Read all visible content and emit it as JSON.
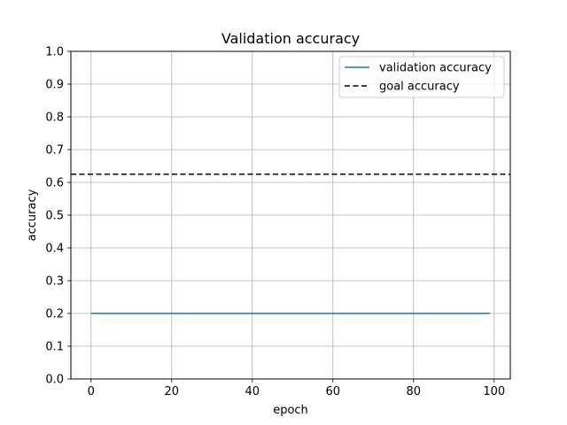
{
  "chart_data": {
    "type": "line",
    "title": "Validation accuracy",
    "xlabel": "epoch",
    "ylabel": "accuracy",
    "xlim": [
      -5,
      104
    ],
    "ylim": [
      0,
      1
    ],
    "xticks": [
      0,
      20,
      40,
      60,
      80,
      100
    ],
    "yticks": [
      0.0,
      0.1,
      0.2,
      0.3,
      0.4,
      0.5,
      0.6,
      0.7,
      0.8,
      0.9,
      1.0
    ],
    "xtick_labels": [
      "0",
      "20",
      "40",
      "60",
      "80",
      "100"
    ],
    "ytick_labels": [
      "0.0",
      "0.1",
      "0.2",
      "0.3",
      "0.4",
      "0.5",
      "0.6",
      "0.7",
      "0.8",
      "0.9",
      "1.0"
    ],
    "grid": true,
    "legend_position": "top-right",
    "series": [
      {
        "name": "validation accuracy",
        "style": "solid",
        "color": "#1f77b4",
        "x": [
          0,
          99
        ],
        "y": [
          0.2,
          0.2
        ]
      },
      {
        "name": "goal accuracy",
        "style": "dashed",
        "color": "#000000",
        "span": "full-width",
        "y": [
          0.625,
          0.625
        ]
      }
    ]
  }
}
